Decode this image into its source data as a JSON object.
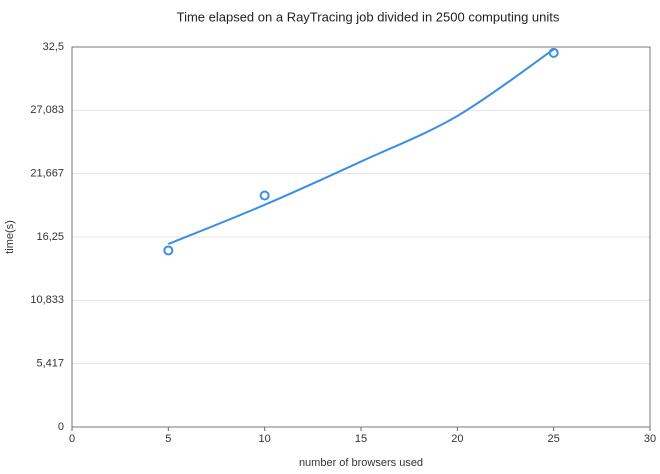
{
  "chart_data": {
    "type": "line",
    "title": "Time elapsed on a RayTracing job divided in 2500 computing units",
    "x_label": "number of browsers used",
    "y_label": "time(s)",
    "xlim": [
      0,
      30
    ],
    "xticks": [
      0,
      5,
      10,
      15,
      20,
      25,
      30
    ],
    "ylim": [
      0,
      32.5
    ],
    "yticks": [
      0,
      {
        "value": 5.417,
        "label": "5,417"
      },
      {
        "value": 10.833,
        "label": "10,833"
      },
      {
        "value": 16.25,
        "label": "16,25"
      },
      {
        "value": 21.667,
        "label": "21,667"
      },
      {
        "value": 27.083,
        "label": "27,083"
      },
      {
        "value": 32.5,
        "label": "32,5"
      }
    ],
    "grid": true,
    "series": [
      {
        "type": "scatter",
        "color": "#3b8fe0",
        "x": [
          5,
          10,
          25
        ],
        "values": [
          15.1,
          19.8,
          32.0
        ]
      },
      {
        "type": "line",
        "color": "#3b8fe0",
        "x": [
          5,
          10,
          15,
          20,
          25
        ],
        "values": [
          15.65,
          19.0,
          22.7,
          26.6,
          32.3
        ]
      }
    ]
  }
}
